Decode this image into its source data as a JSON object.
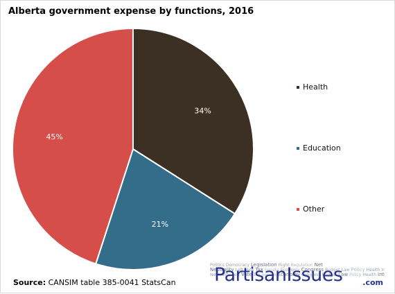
{
  "chart_data": {
    "type": "pie",
    "title": "Alberta government expense by functions,  2016",
    "slices": [
      {
        "label": "Health",
        "value": 34,
        "display": "34%",
        "color": "#3b3023"
      },
      {
        "label": "Education",
        "value": 21,
        "display": "21%",
        "color": "#336d8a"
      },
      {
        "label": "Other",
        "value": 45,
        "display": "45%",
        "color": "#d54e49"
      }
    ],
    "start_angle_deg": 0,
    "direction": "clockwise",
    "legend_position": "right"
  },
  "source": {
    "label": "Source:",
    "text": "CANSIM table 385-0041 StatsCan"
  },
  "logo": {
    "text": "PartisanIssues",
    "suffix": ".com",
    "background_words": [
      "Politics",
      "Democracy",
      "Legislation",
      "Right",
      "Regulation",
      "Net Neutrality",
      "Left",
      "Vote",
      "Tax",
      "Senate",
      "Economy",
      "Congress",
      "Budget",
      "Law",
      "Policy",
      "Health",
      "Internet",
      "Media",
      "Election",
      "Party",
      "Climate",
      "Trade",
      "Rights",
      "Debate",
      "Reform",
      "Court",
      "Freedom",
      "Labor",
      "Privacy",
      "Energy",
      "State",
      "Jobs",
      "Welfare",
      "China",
      "Russia",
      "Immigration",
      "Defense",
      "Power",
      "Justice",
      "Liberty"
    ]
  }
}
